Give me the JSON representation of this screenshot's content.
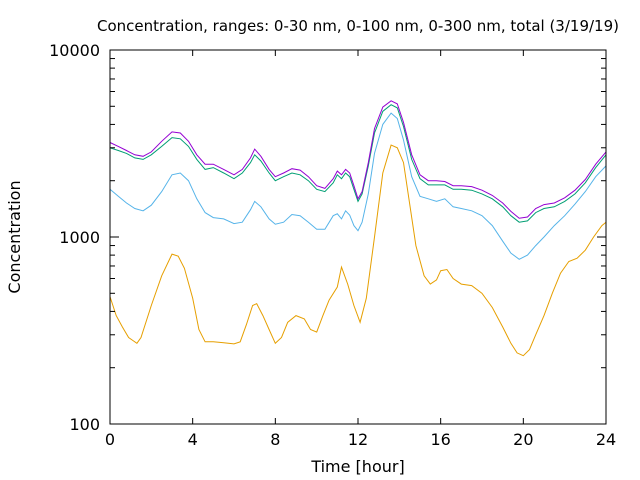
{
  "chart_data": {
    "type": "line",
    "title": "Concentration, ranges: 0-30 nm, 0-100 nm, 0-300 nm, total (3/19/19)",
    "xlabel": "Time [hour]",
    "ylabel": "Concentration",
    "xlim": [
      0,
      24
    ],
    "ylim": [
      100,
      10000
    ],
    "yscale": "log",
    "grid": false,
    "x_ticks": [
      0,
      4,
      8,
      12,
      16,
      20,
      24
    ],
    "x_tick_labels": [
      "0",
      "4",
      "8",
      "12",
      "16",
      "20",
      "24"
    ],
    "y_ticks": [
      100,
      1000,
      10000
    ],
    "y_tick_labels": [
      "100",
      "1000",
      "10000"
    ],
    "series": [
      {
        "color": "#e69f00",
        "x": [
          0,
          0.3,
          0.6,
          0.9,
          1.1,
          1.3,
          1.5,
          2.0,
          2.5,
          3.0,
          3.3,
          3.6,
          4.0,
          4.3,
          4.6,
          5.0,
          5.5,
          6.0,
          6.3,
          6.6,
          6.9,
          7.1,
          7.4,
          7.7,
          8.0,
          8.3,
          8.6,
          9.0,
          9.4,
          9.7,
          10.0,
          10.3,
          10.6,
          11.0,
          11.2,
          11.5,
          11.8,
          12.1,
          12.4,
          12.8,
          13.2,
          13.6,
          13.9,
          14.2,
          14.5,
          14.8,
          15.2,
          15.5,
          15.8,
          16.0,
          16.3,
          16.6,
          17.0,
          17.5,
          18.0,
          18.5,
          19.0,
          19.4,
          19.7,
          20.0,
          20.3,
          20.6,
          21.0,
          21.4,
          21.8,
          22.2,
          22.6,
          23.0,
          23.4,
          23.8,
          24.0
        ],
        "y": [
          480,
          380,
          330,
          290,
          280,
          270,
          290,
          430,
          620,
          810,
          790,
          680,
          470,
          320,
          275,
          275,
          272,
          268,
          275,
          340,
          430,
          440,
          380,
          320,
          270,
          290,
          350,
          380,
          365,
          320,
          310,
          380,
          460,
          540,
          690,
          560,
          430,
          350,
          470,
          1000,
          2200,
          3100,
          3000,
          2500,
          1500,
          900,
          620,
          560,
          590,
          660,
          670,
          600,
          560,
          550,
          500,
          420,
          330,
          270,
          240,
          232,
          250,
          300,
          380,
          500,
          640,
          740,
          770,
          850,
          1000,
          1150,
          1200
        ]
      },
      {
        "color": "#56b4e9",
        "x": [
          0,
          0.4,
          0.8,
          1.2,
          1.6,
          2.0,
          2.5,
          3.0,
          3.4,
          3.8,
          4.2,
          4.6,
          5.0,
          5.5,
          6.0,
          6.4,
          6.8,
          7.0,
          7.3,
          7.7,
          8.0,
          8.4,
          8.8,
          9.2,
          9.6,
          10.0,
          10.4,
          10.8,
          11.0,
          11.2,
          11.4,
          11.6,
          11.8,
          12.0,
          12.2,
          12.5,
          12.8,
          13.2,
          13.6,
          13.9,
          14.2,
          14.6,
          15.0,
          15.4,
          15.8,
          16.2,
          16.6,
          17.0,
          17.5,
          18.0,
          18.5,
          19.0,
          19.4,
          19.8,
          20.2,
          20.6,
          21.0,
          21.5,
          22.0,
          22.5,
          23.0,
          23.5,
          24.0
        ],
        "y": [
          1800,
          1650,
          1520,
          1420,
          1380,
          1480,
          1750,
          2150,
          2200,
          2000,
          1600,
          1350,
          1270,
          1250,
          1180,
          1200,
          1400,
          1550,
          1450,
          1250,
          1170,
          1200,
          1320,
          1300,
          1200,
          1100,
          1100,
          1300,
          1330,
          1250,
          1380,
          1310,
          1150,
          1080,
          1200,
          1700,
          2800,
          4000,
          4600,
          4300,
          3300,
          2100,
          1650,
          1600,
          1550,
          1600,
          1450,
          1420,
          1380,
          1300,
          1150,
          950,
          820,
          760,
          800,
          900,
          1000,
          1150,
          1300,
          1500,
          1750,
          2100,
          2400
        ]
      },
      {
        "color": "#009e73",
        "x": [
          0,
          0.4,
          0.8,
          1.2,
          1.6,
          2.0,
          2.5,
          3.0,
          3.4,
          3.8,
          4.2,
          4.6,
          5.0,
          5.5,
          6.0,
          6.4,
          6.8,
          7.0,
          7.3,
          7.7,
          8.0,
          8.4,
          8.8,
          9.2,
          9.6,
          10.0,
          10.4,
          10.8,
          11.0,
          11.2,
          11.4,
          11.6,
          11.8,
          12.0,
          12.2,
          12.5,
          12.8,
          13.2,
          13.6,
          13.9,
          14.2,
          14.6,
          15.0,
          15.4,
          15.8,
          16.2,
          16.6,
          17.0,
          17.5,
          18.0,
          18.5,
          19.0,
          19.4,
          19.8,
          20.2,
          20.6,
          21.0,
          21.5,
          22.0,
          22.5,
          23.0,
          23.5,
          24.0
        ],
        "y": [
          3000,
          2900,
          2800,
          2650,
          2600,
          2750,
          3050,
          3400,
          3350,
          3050,
          2600,
          2300,
          2350,
          2200,
          2050,
          2200,
          2500,
          2750,
          2550,
          2200,
          2000,
          2100,
          2200,
          2150,
          2000,
          1800,
          1750,
          1950,
          2150,
          2050,
          2200,
          2100,
          1800,
          1550,
          1700,
          2400,
          3600,
          4700,
          5100,
          4900,
          3900,
          2600,
          2050,
          1900,
          1900,
          1900,
          1800,
          1800,
          1780,
          1700,
          1600,
          1450,
          1300,
          1200,
          1220,
          1350,
          1420,
          1450,
          1550,
          1700,
          1950,
          2350,
          2750
        ]
      },
      {
        "color": "#9400d3",
        "x": [
          0,
          0.4,
          0.8,
          1.2,
          1.6,
          2.0,
          2.5,
          3.0,
          3.4,
          3.8,
          4.2,
          4.6,
          5.0,
          5.5,
          6.0,
          6.4,
          6.8,
          7.0,
          7.3,
          7.7,
          8.0,
          8.4,
          8.8,
          9.2,
          9.6,
          10.0,
          10.4,
          10.8,
          11.0,
          11.2,
          11.4,
          11.6,
          11.8,
          12.0,
          12.2,
          12.5,
          12.8,
          13.2,
          13.6,
          13.9,
          14.2,
          14.6,
          15.0,
          15.4,
          15.8,
          16.2,
          16.6,
          17.0,
          17.5,
          18.0,
          18.5,
          19.0,
          19.4,
          19.8,
          20.2,
          20.6,
          21.0,
          21.5,
          22.0,
          22.5,
          23.0,
          23.5,
          24.0
        ],
        "y": [
          3200,
          3050,
          2900,
          2750,
          2700,
          2850,
          3250,
          3650,
          3600,
          3250,
          2750,
          2450,
          2450,
          2300,
          2150,
          2300,
          2650,
          2950,
          2700,
          2300,
          2100,
          2200,
          2320,
          2280,
          2100,
          1880,
          1820,
          2050,
          2250,
          2150,
          2300,
          2200,
          1880,
          1600,
          1750,
          2500,
          3800,
          4950,
          5350,
          5150,
          4100,
          2750,
          2150,
          2000,
          2000,
          1980,
          1880,
          1880,
          1860,
          1780,
          1670,
          1520,
          1370,
          1260,
          1280,
          1420,
          1490,
          1520,
          1620,
          1780,
          2030,
          2450,
          2850
        ]
      }
    ]
  }
}
